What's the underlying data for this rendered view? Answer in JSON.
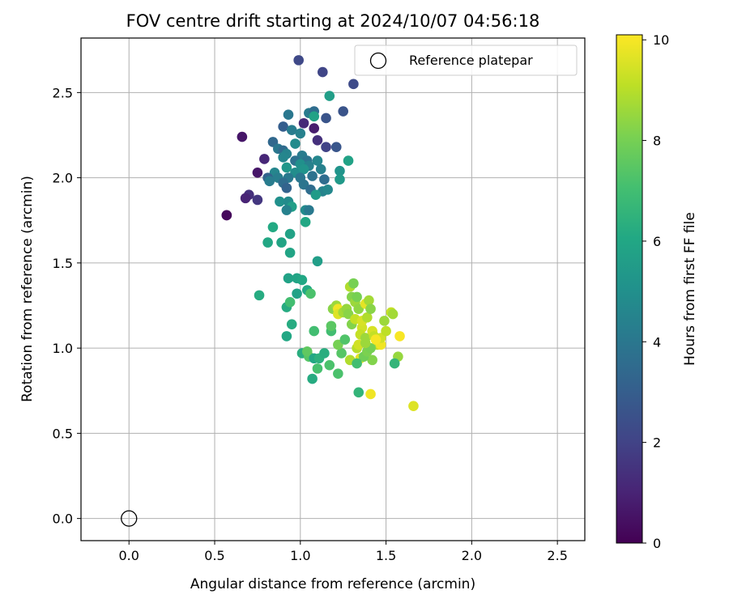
{
  "chart_data": {
    "type": "scatter",
    "title": "FOV centre drift starting at 2024/10/07 04:56:18",
    "xlabel": "Angular distance from reference (arcmin)",
    "ylabel": "Rotation from reference (arcmin)",
    "xlim": [
      -0.28,
      2.66
    ],
    "ylim": [
      -0.13,
      2.82
    ],
    "xticks": [
      "0.0",
      "0.5",
      "1.0",
      "1.5",
      "2.0",
      "2.5"
    ],
    "xtick_values": [
      0,
      0.5,
      1.0,
      1.5,
      2.0,
      2.5
    ],
    "yticks": [
      "0.0",
      "0.5",
      "1.0",
      "1.5",
      "2.0",
      "2.5"
    ],
    "ytick_values": [
      0,
      0.5,
      1.0,
      1.5,
      2.0,
      2.5
    ],
    "grid": true,
    "legend": {
      "placement": "top-right",
      "entries": [
        "Reference platepar"
      ]
    },
    "reference_point": {
      "x": 0.0,
      "y": 0.0,
      "label": "Reference platepar",
      "marker": "hollow-circle"
    },
    "colorbar": {
      "label": "Hours from first FF file",
      "colormap": "viridis",
      "range": [
        0,
        10.1
      ],
      "ticks": [
        "0",
        "2",
        "4",
        "6",
        "8",
        "10"
      ],
      "tick_values": [
        0,
        2,
        4,
        6,
        8,
        10
      ]
    },
    "series": [
      {
        "points": [
          [
            0.99,
            2.69,
            2.2
          ],
          [
            1.13,
            2.62,
            2.1
          ],
          [
            1.31,
            2.55,
            2.3
          ],
          [
            1.17,
            2.48,
            5.6
          ],
          [
            1.25,
            2.39,
            2.6
          ],
          [
            1.05,
            2.38,
            4.2
          ],
          [
            1.08,
            2.39,
            3.6
          ],
          [
            1.15,
            2.35,
            2.6
          ],
          [
            0.93,
            2.37,
            4.0
          ],
          [
            1.08,
            2.36,
            5.8
          ],
          [
            1.02,
            2.32,
            1.2
          ],
          [
            1.08,
            2.29,
            0.8
          ],
          [
            0.9,
            2.3,
            3.0
          ],
          [
            0.95,
            2.28,
            4.2
          ],
          [
            1.0,
            2.26,
            4.4
          ],
          [
            0.66,
            2.24,
            0.6
          ],
          [
            1.1,
            2.22,
            1.4
          ],
          [
            0.84,
            2.21,
            3.4
          ],
          [
            0.97,
            2.2,
            4.8
          ],
          [
            1.15,
            2.18,
            2.0
          ],
          [
            1.21,
            2.18,
            2.7
          ],
          [
            0.87,
            2.17,
            4.0
          ],
          [
            0.9,
            2.16,
            3.5
          ],
          [
            0.92,
            2.14,
            4.5
          ],
          [
            1.01,
            2.13,
            4.2
          ],
          [
            1.04,
            2.1,
            3.9
          ],
          [
            1.1,
            2.1,
            4.6
          ],
          [
            1.28,
            2.1,
            5.8
          ],
          [
            0.79,
            2.11,
            1.1
          ],
          [
            0.9,
            2.12,
            4.6
          ],
          [
            0.97,
            2.1,
            3.8
          ],
          [
            1.0,
            2.08,
            5.0
          ],
          [
            1.05,
            2.07,
            4.4
          ],
          [
            1.12,
            2.05,
            4.4
          ],
          [
            0.92,
            2.06,
            5.3
          ],
          [
            0.85,
            2.03,
            4.6
          ],
          [
            0.97,
            2.03,
            4.9
          ],
          [
            1.02,
            2.05,
            5.2
          ],
          [
            0.75,
            2.03,
            0.6
          ],
          [
            0.81,
            2.0,
            3.2
          ],
          [
            0.87,
            2.0,
            4.3
          ],
          [
            0.93,
            2.0,
            4.1
          ],
          [
            1.0,
            2.0,
            4.0
          ],
          [
            1.07,
            2.01,
            3.8
          ],
          [
            1.14,
            1.99,
            3.6
          ],
          [
            1.23,
            2.04,
            5.2
          ],
          [
            1.23,
            1.99,
            5.4
          ],
          [
            0.82,
            1.98,
            4.2
          ],
          [
            0.9,
            1.97,
            3.6
          ],
          [
            1.02,
            1.96,
            3.9
          ],
          [
            1.06,
            1.93,
            3.6
          ],
          [
            1.13,
            1.92,
            4.5
          ],
          [
            1.16,
            1.93,
            4.7
          ],
          [
            0.92,
            1.94,
            3.2
          ],
          [
            0.7,
            1.9,
            1.4
          ],
          [
            0.68,
            1.88,
            1.0
          ],
          [
            0.75,
            1.87,
            1.6
          ],
          [
            1.09,
            1.9,
            5.5
          ],
          [
            0.88,
            1.86,
            5.0
          ],
          [
            0.93,
            1.86,
            4.8
          ],
          [
            0.95,
            1.83,
            5.6
          ],
          [
            0.92,
            1.81,
            4.4
          ],
          [
            1.03,
            1.81,
            4.8
          ],
          [
            1.05,
            1.81,
            4.1
          ],
          [
            0.57,
            1.78,
            0.1
          ],
          [
            0.57,
            1.78,
            0.2
          ],
          [
            1.03,
            1.74,
            6.0
          ],
          [
            0.84,
            1.71,
            6.1
          ],
          [
            0.94,
            1.67,
            5.8
          ],
          [
            0.81,
            1.62,
            6.0
          ],
          [
            0.89,
            1.62,
            5.9
          ],
          [
            0.94,
            1.56,
            5.9
          ],
          [
            1.1,
            1.51,
            5.6
          ],
          [
            0.93,
            1.41,
            5.8
          ],
          [
            0.98,
            1.41,
            5.9
          ],
          [
            1.01,
            1.4,
            6.0
          ],
          [
            0.76,
            1.31,
            6.2
          ],
          [
            0.98,
            1.32,
            5.8
          ],
          [
            1.04,
            1.34,
            6.1
          ],
          [
            1.06,
            1.32,
            7.2
          ],
          [
            0.92,
            1.24,
            6.2
          ],
          [
            0.94,
            1.27,
            7.0
          ],
          [
            0.95,
            1.14,
            6.2
          ],
          [
            0.92,
            1.07,
            6.0
          ],
          [
            1.08,
            1.1,
            7.0
          ],
          [
            1.01,
            0.97,
            6.3
          ],
          [
            1.05,
            0.95,
            7.4
          ],
          [
            1.04,
            0.98,
            7.6
          ],
          [
            1.08,
            0.94,
            6.0
          ],
          [
            1.11,
            0.94,
            6.4
          ],
          [
            1.14,
            0.97,
            6.3
          ],
          [
            1.17,
            0.9,
            7.2
          ],
          [
            1.1,
            0.88,
            7.1
          ],
          [
            1.07,
            0.82,
            6.2
          ],
          [
            1.22,
            0.85,
            7.2
          ],
          [
            1.24,
            0.97,
            7.4
          ],
          [
            1.22,
            1.02,
            8.0
          ],
          [
            1.26,
            1.05,
            7.3
          ],
          [
            1.18,
            1.1,
            7.0
          ],
          [
            1.18,
            1.13,
            7.5
          ],
          [
            1.19,
            1.23,
            8.3
          ],
          [
            1.21,
            1.25,
            8.6
          ],
          [
            1.22,
            1.23,
            9.9
          ],
          [
            1.22,
            1.2,
            9.6
          ],
          [
            1.25,
            1.21,
            8.7
          ],
          [
            1.27,
            1.23,
            8.5
          ],
          [
            1.29,
            1.36,
            8.9
          ],
          [
            1.31,
            1.38,
            8.0
          ],
          [
            1.3,
            1.3,
            8.2
          ],
          [
            1.32,
            1.27,
            8.6
          ],
          [
            1.33,
            1.3,
            8.0
          ],
          [
            1.34,
            1.23,
            8.4
          ],
          [
            1.28,
            1.2,
            8.3
          ],
          [
            1.3,
            1.14,
            8.2
          ],
          [
            1.32,
            1.17,
            9.2
          ],
          [
            1.36,
            1.12,
            9.4
          ],
          [
            1.36,
            1.16,
            9.5
          ],
          [
            1.35,
            1.08,
            9.2
          ],
          [
            1.38,
            1.06,
            8.6
          ],
          [
            1.39,
            1.18,
            8.9
          ],
          [
            1.38,
            1.26,
            9.7
          ],
          [
            1.4,
            1.28,
            8.7
          ],
          [
            1.41,
            1.23,
            8.3
          ],
          [
            1.42,
            1.1,
            9.5
          ],
          [
            1.43,
            1.07,
            9.2
          ],
          [
            1.45,
            1.02,
            9.2
          ],
          [
            1.47,
            1.02,
            9.9
          ],
          [
            1.47,
            1.06,
            9.4
          ],
          [
            1.5,
            1.1,
            9.1
          ],
          [
            1.49,
            1.16,
            8.6
          ],
          [
            1.53,
            1.21,
            9.2
          ],
          [
            1.54,
            1.2,
            8.7
          ],
          [
            1.57,
            0.95,
            8.5
          ],
          [
            1.55,
            0.91,
            6.6
          ],
          [
            1.58,
            1.07,
            10.0
          ],
          [
            1.66,
            0.66,
            9.6
          ],
          [
            1.42,
            0.93,
            8.2
          ],
          [
            1.41,
            0.73,
            9.9
          ],
          [
            1.29,
            0.93,
            8.9
          ],
          [
            1.33,
            1.0,
            9.0
          ],
          [
            1.35,
            0.94,
            9.7
          ],
          [
            1.34,
            1.02,
            9.4
          ],
          [
            1.37,
            0.95,
            7.9
          ],
          [
            1.39,
            0.98,
            8.1
          ],
          [
            1.41,
            1.0,
            8.0
          ],
          [
            1.33,
            0.91,
            7.0
          ],
          [
            1.34,
            0.74,
            6.6
          ],
          [
            1.38,
            1.03,
            8.6
          ],
          [
            1.44,
            1.05,
            10.0
          ]
        ]
      }
    ]
  }
}
